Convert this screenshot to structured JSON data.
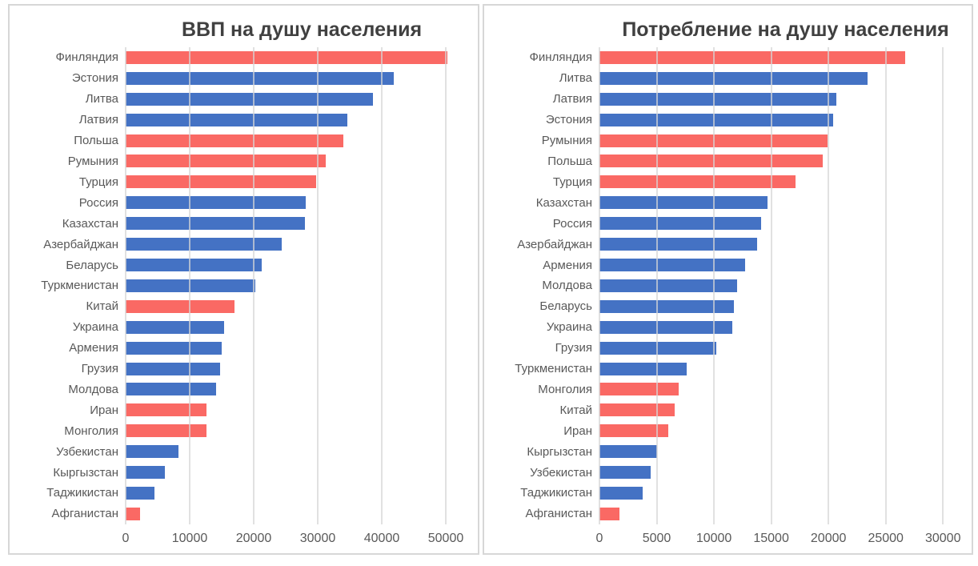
{
  "colors": {
    "bar_red": "#FA6964",
    "bar_blue": "#4472C4",
    "gridline": "#D6D6D6",
    "axis_text": "#595959",
    "title_text": "#404040",
    "panel_border": "#D7D7D7",
    "background": "#FFFFFF"
  },
  "chart_data": [
    {
      "type": "bar",
      "orientation": "horizontal",
      "title": "ВВП на душу населения",
      "xlabel": "",
      "ylabel": "",
      "grid": true,
      "legend": null,
      "xlim": [
        0,
        55000
      ],
      "xticks": [
        0,
        10000,
        20000,
        30000,
        40000,
        50000
      ],
      "categories": [
        "Финляндия",
        "Эстония",
        "Литва",
        "Латвия",
        "Польша",
        "Румыния",
        "Турция",
        "Россия",
        "Казахстан",
        "Азербайджан",
        "Беларусь",
        "Туркменистан",
        "Китай",
        "Украина",
        "Армения",
        "Грузия",
        "Молдова",
        "Иран",
        "Монголия",
        "Узбекистан",
        "Кыргызстан",
        "Таджикистан",
        "Афганистан"
      ],
      "values": [
        50300,
        41900,
        38600,
        34600,
        34000,
        31300,
        29800,
        28100,
        28000,
        24400,
        21200,
        20300,
        17000,
        15400,
        15000,
        14700,
        14100,
        12600,
        12600,
        8300,
        6100,
        4500,
        2200
      ],
      "bar_colors": [
        "#FA6964",
        "#4472C4",
        "#4472C4",
        "#4472C4",
        "#FA6964",
        "#FA6964",
        "#FA6964",
        "#4472C4",
        "#4472C4",
        "#4472C4",
        "#4472C4",
        "#4472C4",
        "#FA6964",
        "#4472C4",
        "#4472C4",
        "#4472C4",
        "#4472C4",
        "#FA6964",
        "#FA6964",
        "#4472C4",
        "#4472C4",
        "#4472C4",
        "#FA6964"
      ]
    },
    {
      "type": "bar",
      "orientation": "horizontal",
      "title": "Потребление на душу населения",
      "xlabel": "",
      "ylabel": "",
      "grid": true,
      "legend": null,
      "xlim": [
        0,
        32500
      ],
      "xticks": [
        0,
        5000,
        10000,
        15000,
        20000,
        25000,
        30000
      ],
      "categories": [
        "Финляндия",
        "Литва",
        "Латвия",
        "Эстония",
        "Румыния",
        "Польша",
        "Турция",
        "Казахстан",
        "Россия",
        "Азербайджан",
        "Армения",
        "Молдова",
        "Беларусь",
        "Украина",
        "Грузия",
        "Туркменистан",
        "Монголия",
        "Китай",
        "Иран",
        "Кыргызстан",
        "Узбекистан",
        "Таджикистан",
        "Афганистан"
      ],
      "values": [
        26700,
        23400,
        20700,
        20400,
        19900,
        19500,
        17100,
        14700,
        14100,
        13800,
        12700,
        12000,
        11750,
        11600,
        10200,
        7600,
        6900,
        6600,
        6000,
        5000,
        4500,
        3800,
        1750
      ],
      "bar_colors": [
        "#FA6964",
        "#4472C4",
        "#4472C4",
        "#4472C4",
        "#FA6964",
        "#FA6964",
        "#FA6964",
        "#4472C4",
        "#4472C4",
        "#4472C4",
        "#4472C4",
        "#4472C4",
        "#4472C4",
        "#4472C4",
        "#4472C4",
        "#4472C4",
        "#FA6964",
        "#FA6964",
        "#FA6964",
        "#4472C4",
        "#4472C4",
        "#4472C4",
        "#FA6964"
      ]
    }
  ]
}
